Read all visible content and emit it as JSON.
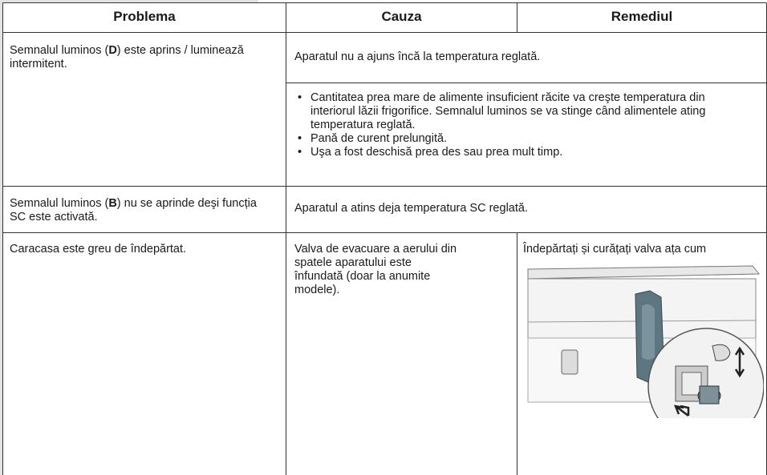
{
  "table": {
    "header": [
      "Problema",
      "Cauza",
      "Remediul"
    ],
    "row1": {
      "problem": [
        "Semnalul luminos (",
        "D",
        ") este aprins / luminează intermitent."
      ],
      "cause1": "Aparatul nu a ajuns încă la temperatura reglată.",
      "cause2": [
        "Cantitatea prea mare de alimente insuficient răcite va creşte temperatura din interiorul lăzii frigorifice. Semnalul luminos se va stinge când alimentele ating temperatura reglată.",
        "Pană  de curent prelungită.",
        "Uşa a fost deschisă prea des sau prea mult timp."
      ]
    },
    "row2": {
      "problem": [
        "Semnalul luminos (",
        "B",
        ") nu se aprinde deşi funcția SC este activată."
      ],
      "cause": "Aparatul a atins deja temperatura SC reglată."
    },
    "row3": {
      "problem": "Caracasa este greu de îndepărtat.",
      "cause": "Valva de evacuare a aerului din spatele aparatului este înfundată (doar la anumite modele).",
      "remedy": "Îndepărtați și curățați valva ața cum"
    }
  }
}
